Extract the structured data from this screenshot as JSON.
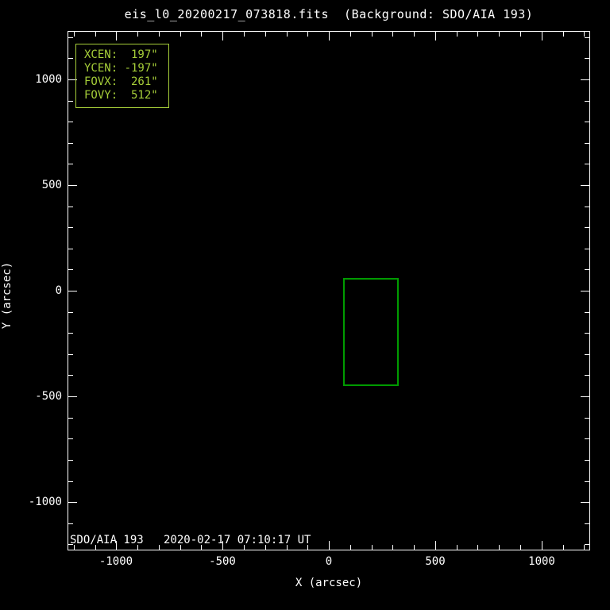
{
  "chart_data": {
    "type": "scatter",
    "title": "eis_l0_20200217_073818.fits  (Background: SDO/AIA 193)",
    "xlabel": "X (arcsec)",
    "ylabel": "Y (arcsec)",
    "xlim": [
      -1228.8,
      1228.8
    ],
    "ylim": [
      -1228.8,
      1228.8
    ],
    "grid": false,
    "legend": false,
    "background_color": "#000000",
    "axis_color": "#ffffff",
    "ticks": {
      "major_interval": 500,
      "minor_interval": 100,
      "x_major_labels": [
        "-1000",
        "-500",
        "0",
        "500",
        "1000"
      ],
      "x_major_values": [
        -1000,
        -500,
        0,
        500,
        1000
      ],
      "y_major_labels": [
        "1000",
        "500",
        "0",
        "-500",
        "-1000"
      ],
      "y_major_values": [
        1000,
        500,
        0,
        -500,
        -1000
      ]
    },
    "fov_box": {
      "xcen_arcsec": 197,
      "ycen_arcsec": -197,
      "fovx_arcsec": 261,
      "fovy_arcsec": 512,
      "color": "#009B00"
    },
    "info_box": {
      "color": "#A6CE39",
      "lines": [
        "XCEN:  197\"",
        "YCEN: -197\"",
        "FOVX:  261\"",
        "FOVY:  512\""
      ]
    },
    "annotations": [
      {
        "name": "background-credit",
        "text": "SDO/AIA 193   2020-02-17 07:10:17 UT",
        "color": "#ffffff"
      }
    ]
  },
  "labels": {
    "title": "eis_l0_20200217_073818.fits  (Background: SDO/AIA 193)",
    "xlabel": "X (arcsec)",
    "ylabel": "Y (arcsec)",
    "credit": "SDO/AIA 193   2020-02-17 07:10:17 UT"
  }
}
